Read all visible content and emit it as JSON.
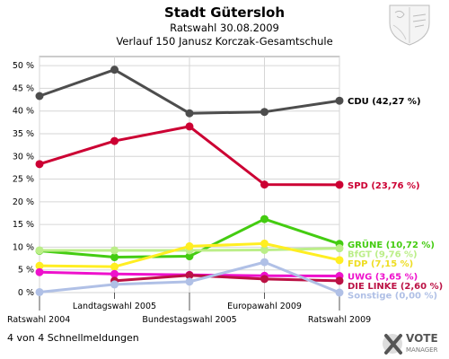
{
  "header": {
    "title": "Stadt Gütersloh",
    "subtitle1": "Ratswahl 30.08.2009",
    "subtitle2": "Verlauf 150 Janusz Korczak-Gesamtschule"
  },
  "footer": {
    "text": "4 von 4 Schnellmeldungen"
  },
  "logo": {
    "text_line1": "VOTE",
    "text_line2": "MANAGER",
    "icon": "vote-manager-x-icon"
  },
  "emblem": {
    "icon": "nrw-coat-of-arms-icon"
  },
  "chart_data": {
    "type": "line",
    "categories": [
      "Ratswahl 2004",
      "Landtagswahl 2005",
      "Bundestagswahl 2005",
      "Europawahl 2009",
      "Ratswahl 2009"
    ],
    "ylim": [
      0,
      52
    ],
    "yticks": [
      "0 %",
      "5 %",
      "10 %",
      "15 %",
      "20 %",
      "25 %",
      "30 %",
      "35 %",
      "40 %",
      "45 %",
      "50 %"
    ],
    "grid": true,
    "series": [
      {
        "name": "CDU",
        "end_label": "CDU (42,27 %)",
        "color": "#4d4d4d",
        "label_color": "#000000",
        "values": [
          43.3,
          49.1,
          39.5,
          39.8,
          42.27
        ]
      },
      {
        "name": "SPD",
        "end_label": "SPD (23,76 %)",
        "color": "#cc0033",
        "label_color": "#cc0033",
        "values": [
          28.3,
          33.4,
          36.6,
          23.8,
          23.76
        ]
      },
      {
        "name": "GRÜNE",
        "end_label": "GRÜNE (10,72 %)",
        "color": "#44cc11",
        "label_color": "#44cc11",
        "values": [
          9.2,
          7.8,
          8.0,
          16.2,
          10.72
        ]
      },
      {
        "name": "BfGT",
        "end_label": "BfGT (9,76 %)",
        "color": "#bbee88",
        "label_color": "#bbee88",
        "values": [
          9.3,
          9.3,
          9.3,
          9.4,
          9.76
        ]
      },
      {
        "name": "FDP",
        "end_label": "FDP (7,15 %)",
        "color": "#ffee22",
        "label_color": "#eedd22",
        "values": [
          5.9,
          5.7,
          10.2,
          10.8,
          7.15
        ]
      },
      {
        "name": "UWG",
        "end_label": "UWG (3,65 %)",
        "color": "#ee11cc",
        "label_color": "#ee11cc",
        "values": [
          4.5,
          4.1,
          3.9,
          3.7,
          3.65
        ]
      },
      {
        "name": "DIE LINKE",
        "end_label": "DIE LINKE (2,60 %)",
        "color": "#bb1144",
        "label_color": "#bb1144",
        "values": [
          null,
          2.6,
          3.8,
          3.0,
          2.6
        ]
      },
      {
        "name": "Sonstige",
        "end_label": "Sonstige (0,00 %)",
        "color": "#b0c0e6",
        "label_color": "#b0c0e6",
        "values": [
          0.1,
          1.8,
          2.4,
          6.7,
          0.0
        ]
      }
    ]
  }
}
